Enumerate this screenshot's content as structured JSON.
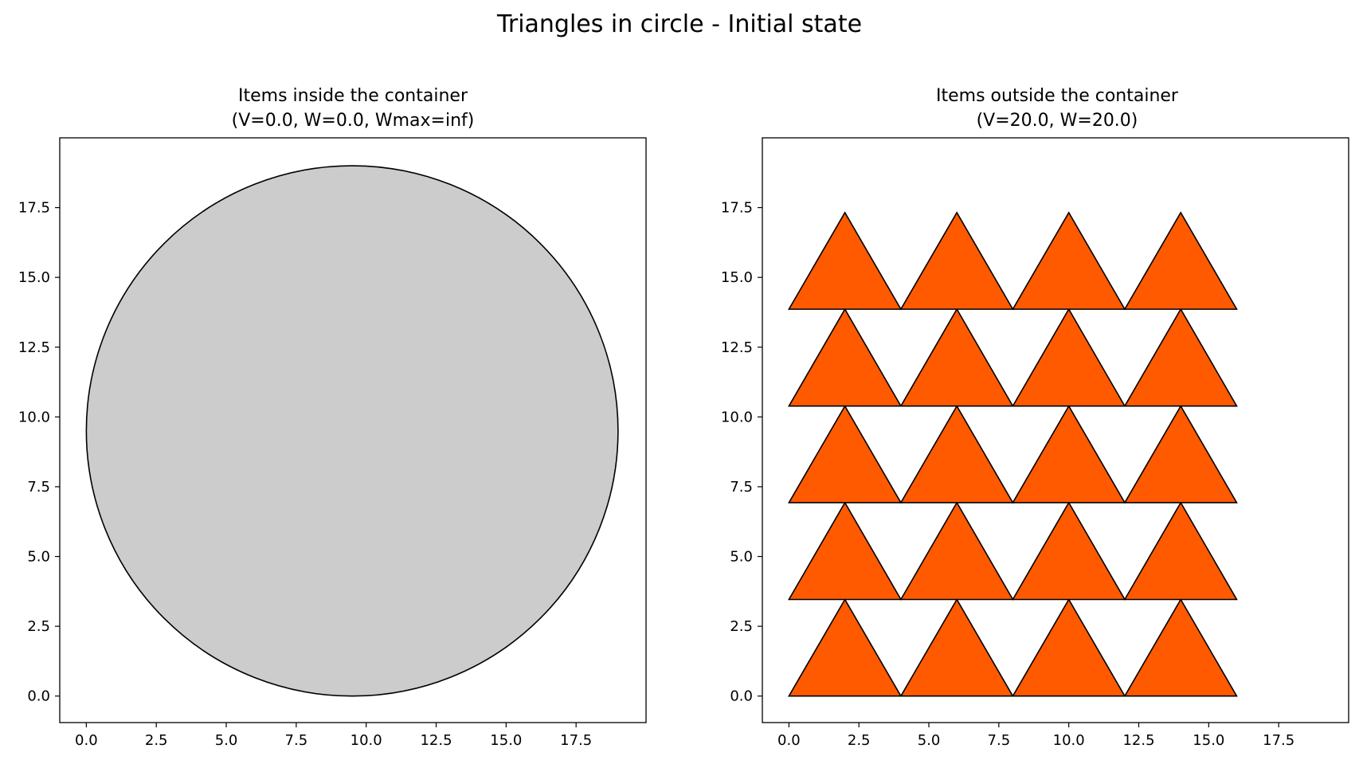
{
  "figure": {
    "title": "Triangles in circle - Initial state"
  },
  "colors": {
    "container_fill": "#cccccc",
    "item_fill": "#ff5a00",
    "edge": "#000000"
  },
  "chart_data": [
    {
      "type": "scatter",
      "title": "Items inside the container",
      "subtitle": "(V=0.0, W=0.0, Wmax=inf)",
      "xlabel": "",
      "ylabel": "",
      "xlim": [
        -0.95,
        20.0
      ],
      "ylim": [
        -0.95,
        20.0
      ],
      "xticks": [
        "0.0",
        "2.5",
        "5.0",
        "7.5",
        "10.0",
        "12.5",
        "15.0",
        "17.5"
      ],
      "yticks": [
        "0.0",
        "2.5",
        "5.0",
        "7.5",
        "10.0",
        "12.5",
        "15.0",
        "17.5"
      ],
      "grid": false,
      "container": {
        "shape": "circle",
        "center": [
          9.5,
          9.5
        ],
        "radius": 9.5
      },
      "items": []
    },
    {
      "type": "scatter",
      "title": "Items outside the container",
      "subtitle": "(V=20.0, W=20.0)",
      "xlabel": "",
      "ylabel": "",
      "xlim": [
        -0.95,
        20.0
      ],
      "ylim": [
        -0.95,
        20.0
      ],
      "xticks": [
        "0.0",
        "2.5",
        "5.0",
        "7.5",
        "10.0",
        "12.5",
        "15.0",
        "17.5"
      ],
      "yticks": [
        "0.0",
        "2.5",
        "5.0",
        "7.5",
        "10.0",
        "12.5",
        "15.0",
        "17.5"
      ],
      "grid": false,
      "item_shape": "triangle",
      "items": [
        [
          [
            0,
            0
          ],
          [
            4,
            0
          ],
          [
            2,
            3.46
          ]
        ],
        [
          [
            4,
            0
          ],
          [
            8,
            0
          ],
          [
            6,
            3.46
          ]
        ],
        [
          [
            8,
            0
          ],
          [
            12,
            0
          ],
          [
            10,
            3.46
          ]
        ],
        [
          [
            12,
            0
          ],
          [
            16,
            0
          ],
          [
            14,
            3.46
          ]
        ],
        [
          [
            0,
            3.46
          ],
          [
            4,
            3.46
          ],
          [
            2,
            6.93
          ]
        ],
        [
          [
            4,
            3.46
          ],
          [
            8,
            3.46
          ],
          [
            6,
            6.93
          ]
        ],
        [
          [
            8,
            3.46
          ],
          [
            12,
            3.46
          ],
          [
            10,
            6.93
          ]
        ],
        [
          [
            12,
            3.46
          ],
          [
            16,
            3.46
          ],
          [
            14,
            6.93
          ]
        ],
        [
          [
            0,
            6.93
          ],
          [
            4,
            6.93
          ],
          [
            2,
            10.39
          ]
        ],
        [
          [
            4,
            6.93
          ],
          [
            8,
            6.93
          ],
          [
            6,
            10.39
          ]
        ],
        [
          [
            8,
            6.93
          ],
          [
            12,
            6.93
          ],
          [
            10,
            10.39
          ]
        ],
        [
          [
            12,
            6.93
          ],
          [
            16,
            6.93
          ],
          [
            14,
            10.39
          ]
        ],
        [
          [
            0,
            10.39
          ],
          [
            4,
            10.39
          ],
          [
            2,
            13.86
          ]
        ],
        [
          [
            4,
            10.39
          ],
          [
            8,
            10.39
          ],
          [
            6,
            13.86
          ]
        ],
        [
          [
            8,
            10.39
          ],
          [
            12,
            10.39
          ],
          [
            10,
            13.86
          ]
        ],
        [
          [
            12,
            10.39
          ],
          [
            16,
            10.39
          ],
          [
            14,
            13.86
          ]
        ],
        [
          [
            0,
            13.86
          ],
          [
            4,
            13.86
          ],
          [
            2,
            17.32
          ]
        ],
        [
          [
            4,
            13.86
          ],
          [
            8,
            13.86
          ],
          [
            6,
            17.32
          ]
        ],
        [
          [
            8,
            13.86
          ],
          [
            12,
            13.86
          ],
          [
            10,
            17.32
          ]
        ],
        [
          [
            12,
            13.86
          ],
          [
            16,
            13.86
          ],
          [
            14,
            17.32
          ]
        ]
      ]
    }
  ]
}
